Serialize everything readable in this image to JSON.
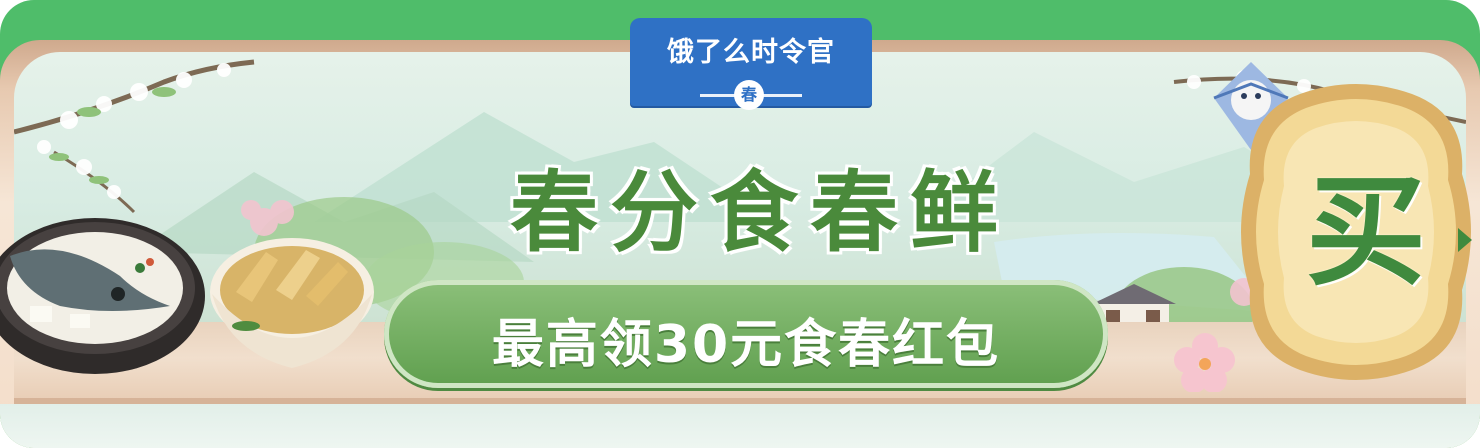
{
  "badge": {
    "title": "饿了么时令官",
    "season": "春"
  },
  "headline": "春分食春鲜",
  "cta": {
    "label": "最高领30元食春红包"
  },
  "buy_button": {
    "label": "买"
  },
  "colors": {
    "top_bar": "#4fbd6a",
    "badge_blue": "#2f71c5",
    "headline_green": "#4a8a3b",
    "pill_green": "#6aa858",
    "buy_gold": "#e8c47a"
  },
  "icons": {
    "fish_soup": "fish-soup-icon",
    "bamboo_shoots": "bamboo-shoot-bowl-icon",
    "kite": "kite-icon",
    "blossom": "blossom-icon"
  }
}
